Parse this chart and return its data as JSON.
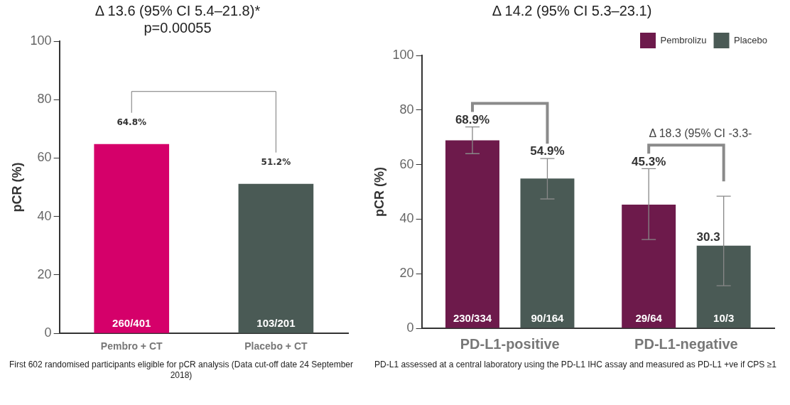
{
  "chart_data": [
    {
      "type": "bar",
      "title": "Δ 13.6 (95% CI 5.4–21.8)*",
      "subtitle": "p=0.00055",
      "ylabel": "pCR (%)",
      "categories": [
        "Pembro + CT",
        "Placebo + CT"
      ],
      "values": [
        64.8,
        51.2
      ],
      "colors": [
        "#d5006a",
        "#4a5a55"
      ],
      "value_labels": [
        "64.8%",
        "51.2%"
      ],
      "ylim": [
        0,
        100
      ],
      "yticks": [
        0,
        20,
        40,
        60,
        80,
        100
      ],
      "legend": false,
      "annotations": [
        "260/401",
        "103/201",
        "First 602 randomised participants eligible for pCR analysis (Data cut-off date 24 September 2018)"
      ]
    },
    {
      "type": "bar",
      "title": "Δ 14.2 (95% CI 5.3–23.1)",
      "ylabel": "pCR (%)",
      "categories": [
        "PD-L1-positive",
        "PD-L1-negative"
      ],
      "ylim": [
        0,
        100
      ],
      "yticks": [
        0,
        20,
        40,
        60,
        80,
        100
      ],
      "legend": "top right",
      "series": [
        {
          "name": "Pembrolizu",
          "color": "#6d1a4b",
          "values": [
            68.9,
            45.3
          ],
          "errors": [
            [
              64.0,
              73.8
            ],
            [
              32.5,
              58.5
            ]
          ],
          "value_labels": [
            "68.9%",
            "45.3%"
          ]
        },
        {
          "name": "Placebo",
          "color": "#4a5a55",
          "values": [
            54.9,
            30.3
          ],
          "errors": [
            [
              47.4,
              62.2
            ],
            [
              15.6,
              48.4
            ]
          ],
          "value_labels": [
            "54.9%",
            "30.3"
          ]
        }
      ],
      "annotations": [
        "230/334",
        "90/164",
        "29/64",
        "10/3",
        "Δ 18.3 (95% CI -3.3-",
        "PD-L1 assessed at a central laboratory using the PD-L1 IHC assay and measured as PD-L1 +ve if CPS ≥1"
      ]
    }
  ]
}
